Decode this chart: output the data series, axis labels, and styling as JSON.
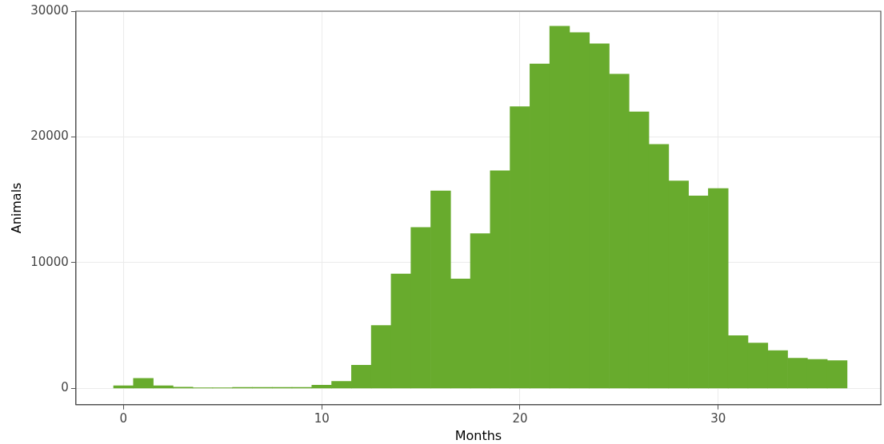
{
  "chart_data": {
    "type": "histogram",
    "xlabel": "Months",
    "ylabel": "Animals",
    "bins": [
      -0.5,
      0.5,
      1.5,
      2.5,
      3.5,
      4.5,
      5.5,
      6.5,
      7.5,
      8.5,
      9.5,
      10.5,
      11.5,
      12.5,
      13.5,
      14.5,
      15.5,
      16.5,
      17.5,
      18.5,
      19.5,
      20.5,
      21.5,
      22.5,
      23.5,
      24.5,
      25.5,
      26.5,
      27.5,
      28.5,
      29.5,
      30.5,
      31.5,
      32.5,
      33.5,
      34.5,
      35.5,
      36.5
    ],
    "values": [
      200,
      800,
      200,
      100,
      50,
      50,
      80,
      80,
      80,
      80,
      250,
      550,
      1850,
      5000,
      9100,
      12800,
      15700,
      8700,
      12300,
      17300,
      22400,
      25800,
      28800,
      28300,
      27400,
      25000,
      22000,
      19400,
      16500,
      15300,
      15900,
      4200,
      3600,
      3000,
      2400,
      2300,
      2200
    ],
    "color": "#68ab2d",
    "xlim": [
      -2.4,
      38.2
    ],
    "xticks": [
      0,
      10,
      20,
      30
    ],
    "ylim": [
      -1300,
      30000
    ],
    "yticks": [
      0,
      10000,
      20000,
      30000
    ],
    "grid": true
  }
}
